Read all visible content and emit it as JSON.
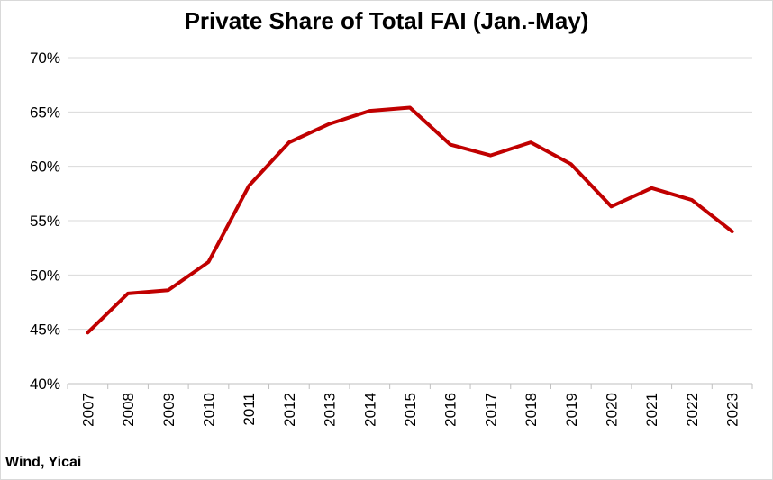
{
  "chart_data": {
    "type": "line",
    "title": "Private Share of Total FAI (Jan.-May)",
    "source": "Wind, Yicai",
    "xlabel": "",
    "ylabel": "",
    "categories": [
      "2007",
      "2008",
      "2009",
      "2010",
      "2011",
      "2012",
      "2013",
      "2014",
      "2015",
      "2016",
      "2017",
      "2018",
      "2019",
      "2020",
      "2021",
      "2022",
      "2023"
    ],
    "series": [
      {
        "values": [
          44.7,
          48.3,
          48.6,
          51.2,
          58.2,
          62.2,
          63.9,
          65.1,
          65.4,
          62.0,
          61.0,
          62.2,
          60.2,
          56.3,
          58.0,
          56.9,
          54.0
        ]
      }
    ],
    "ylim": [
      40,
      70
    ],
    "yticks": [
      "40%",
      "45%",
      "50%",
      "55%",
      "60%",
      "65%",
      "70%"
    ],
    "grid": true,
    "line_color": "#c00000",
    "grid_color": "#d9d9d9"
  }
}
